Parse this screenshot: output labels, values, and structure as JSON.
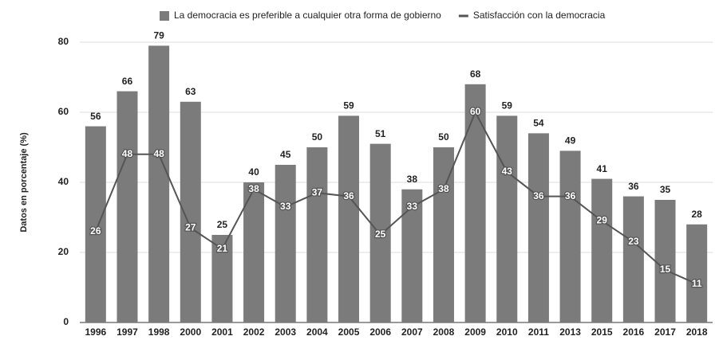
{
  "chart_data": {
    "type": "bar",
    "y_label": "Datos en porcentaje (%)",
    "categories": [
      "1996",
      "1997",
      "1998",
      "2000",
      "2001",
      "2002",
      "2003",
      "2004",
      "2005",
      "2006",
      "2007",
      "2008",
      "2009",
      "2010",
      "2011",
      "2013",
      "2015",
      "2016",
      "2017",
      "2018"
    ],
    "series": [
      {
        "name": "La democracia es preferible a cualquier otra forma de gobierno",
        "type": "bar",
        "color": "#7b7b7b",
        "values": [
          56,
          66,
          79,
          63,
          25,
          40,
          45,
          50,
          59,
          51,
          38,
          50,
          68,
          59,
          54,
          49,
          41,
          36,
          35,
          28
        ]
      },
      {
        "name": "Satisfacción con la democracia",
        "type": "line",
        "color": "#555555",
        "values": [
          26,
          48,
          48,
          27,
          21,
          38,
          33,
          37,
          36,
          25,
          33,
          38,
          60,
          43,
          36,
          36,
          29,
          23,
          15,
          11
        ]
      }
    ],
    "ylim": [
      0,
      80
    ],
    "yticks": [
      0,
      20,
      40,
      60,
      80
    ],
    "grid": true,
    "legend": "top"
  }
}
